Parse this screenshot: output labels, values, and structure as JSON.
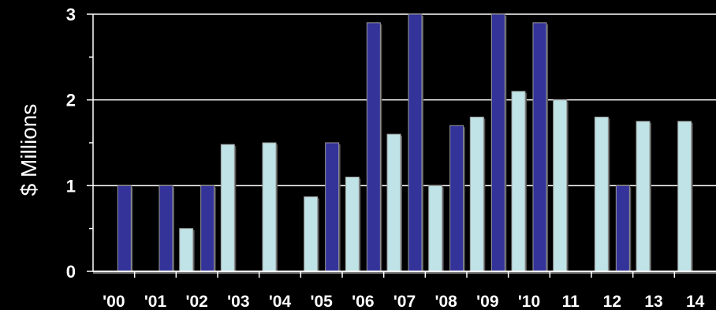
{
  "chart_data": {
    "type": "bar",
    "title": "",
    "xlabel": "",
    "ylabel": "$ Millions",
    "ylim": [
      0,
      3
    ],
    "y_ticks": [
      "0",
      "1",
      "2",
      "3"
    ],
    "grid": true,
    "legend": "none",
    "categories": [
      "'00",
      "'01",
      "'02",
      "'03",
      "'04",
      "'05",
      "'06",
      "'07",
      "'08",
      "'09",
      "'10",
      "11",
      "12",
      "13",
      "14"
    ],
    "series": [
      {
        "color": "#bfe3e6",
        "values": [
          null,
          null,
          0.5,
          1.48,
          1.5,
          0.87,
          1.1,
          1.6,
          1.0,
          1.8,
          2.1,
          2.0,
          1.8,
          1.75,
          1.75
        ]
      },
      {
        "color": "#33339a",
        "values": [
          1.0,
          1.0,
          1.0,
          null,
          null,
          1.5,
          2.9,
          3.0,
          1.7,
          3.0,
          2.9,
          null,
          1.0,
          null,
          null
        ]
      }
    ]
  }
}
